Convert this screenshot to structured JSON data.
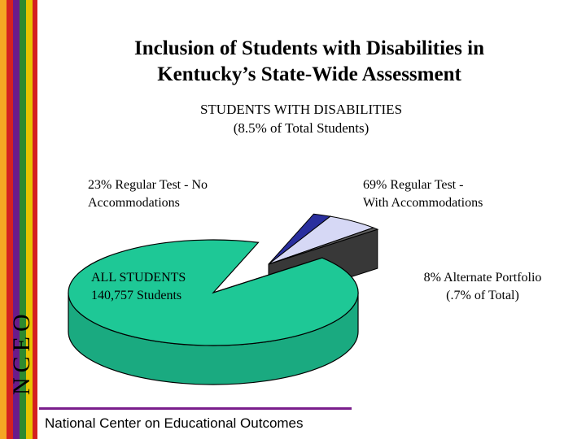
{
  "header": {
    "title_line1": "Inclusion of Students with Disabilities in",
    "title_line2": "Kentucky’s State-Wide Assessment"
  },
  "sidebar": {
    "org": "NCEO",
    "stripe_colors": [
      "#f5a623",
      "#d42020",
      "#6a1b8a",
      "#2f8a2f",
      "#e8c400",
      "#d42020"
    ]
  },
  "chart_data": {
    "type": "pie",
    "title": "STUDENTS WITH DISABILITIES",
    "subtitle": "(8.5% of Total Students)",
    "main_slice": {
      "label_line1": "ALL STUDENTS",
      "label_line2": "140,757 Students",
      "color": "#1ec896"
    },
    "disability_breakdown": [
      {
        "label_line1": "23% Regular Test - No",
        "label_line2": "Accommodations",
        "percent": 23,
        "color": "#2a2f9e"
      },
      {
        "label_line1": "69% Regular Test -",
        "label_line2": "With Accommodations",
        "percent": 69,
        "color": "#d6d8f5"
      },
      {
        "label_line1": "8% Alternate Portfolio",
        "label_line2": "(.7% of Total)",
        "percent": 8,
        "color": "#5e5e5e"
      }
    ]
  },
  "footer": {
    "text": "National Center on Educational Outcomes"
  }
}
